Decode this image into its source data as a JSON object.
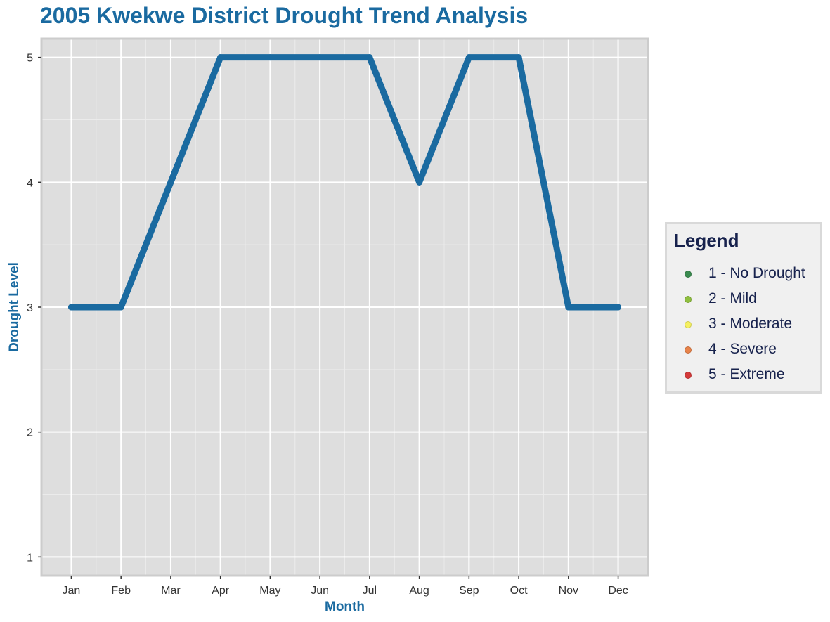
{
  "chart_data": {
    "type": "line",
    "title": "2005 Kwekwe District Drought Trend Analysis",
    "xlabel": "Month",
    "ylabel": "Drought Level",
    "categories": [
      "Jan",
      "Feb",
      "Mar",
      "Apr",
      "May",
      "Jun",
      "Jul",
      "Aug",
      "Sep",
      "Oct",
      "Nov",
      "Dec"
    ],
    "series": [
      {
        "values": [
          3,
          3,
          4,
          5,
          5,
          5,
          5,
          4,
          5,
          5,
          3,
          3
        ],
        "color": "#1a6aa0"
      }
    ],
    "ylim": [
      0.85,
      5.15
    ],
    "yticks": [
      1,
      2,
      3,
      4,
      5
    ],
    "grid": true,
    "panel_background": "#dedede",
    "legend": {
      "title": "Legend",
      "position": "right",
      "items": [
        {
          "label": "1 - No Drought",
          "color": "#3a8a4f"
        },
        {
          "label": "2 - Mild",
          "color": "#8fbf3f"
        },
        {
          "label": "3 - Moderate",
          "color": "#f5f060"
        },
        {
          "label": "4 - Severe",
          "color": "#e8834a"
        },
        {
          "label": "5 - Extreme",
          "color": "#d43a3a"
        }
      ]
    }
  }
}
